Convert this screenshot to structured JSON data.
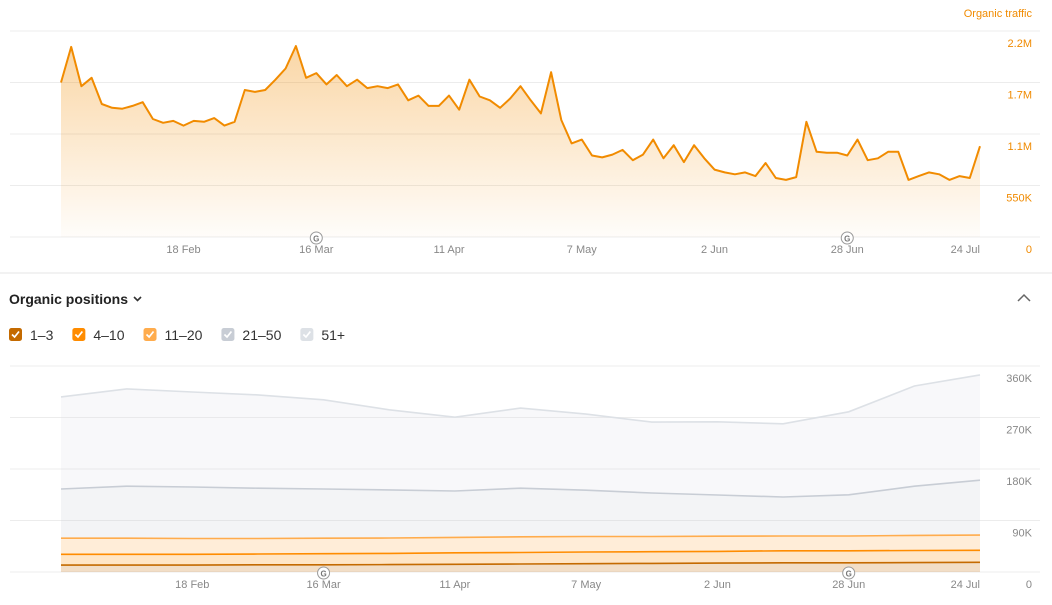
{
  "chart_data": [
    {
      "type": "area",
      "categories": [
        null,
        null,
        null,
        null,
        null,
        null,
        null,
        null,
        null,
        null,
        null,
        null,
        "18 Feb",
        null,
        null,
        null,
        null,
        null,
        null,
        null,
        null,
        null,
        null,
        null,
        null,
        "16 Mar",
        null,
        null,
        null,
        null,
        null,
        null,
        null,
        null,
        null,
        null,
        null,
        null,
        "11 Apr",
        null,
        null,
        null,
        null,
        null,
        null,
        null,
        null,
        null,
        null,
        null,
        null,
        "7 May",
        null,
        null,
        null,
        null,
        null,
        null,
        null,
        null,
        null,
        null,
        null,
        null,
        "2 Jun",
        null,
        null,
        null,
        null,
        null,
        null,
        null,
        null,
        null,
        null,
        null,
        null,
        "28 Jun",
        null,
        null,
        null,
        null,
        null,
        null,
        null,
        null,
        null,
        null,
        null,
        null,
        "24 Jul"
      ],
      "series": [
        {
          "name": "Organic traffic",
          "color": "#f18b00",
          "values": [
            1650000,
            2030000,
            1610000,
            1700000,
            1420000,
            1380000,
            1370000,
            1400000,
            1440000,
            1260000,
            1220000,
            1240000,
            1190000,
            1240000,
            1230000,
            1270000,
            1190000,
            1230000,
            1570000,
            1550000,
            1570000,
            1680000,
            1800000,
            2040000,
            1700000,
            1750000,
            1630000,
            1730000,
            1610000,
            1680000,
            1590000,
            1610000,
            1590000,
            1630000,
            1460000,
            1510000,
            1400000,
            1400000,
            1510000,
            1360000,
            1680000,
            1500000,
            1460000,
            1380000,
            1480000,
            1610000,
            1460000,
            1320000,
            1760000,
            1250000,
            1000000,
            1040000,
            870000,
            850000,
            880000,
            930000,
            820000,
            880000,
            1040000,
            840000,
            980000,
            800000,
            980000,
            840000,
            720000,
            690000,
            670000,
            690000,
            650000,
            790000,
            630000,
            610000,
            640000,
            1230000,
            910000,
            900000,
            900000,
            870000,
            1040000,
            820000,
            840000,
            910000,
            910000,
            610000,
            650000,
            690000,
            670000,
            610000,
            650000,
            630000,
            970000
          ]
        }
      ],
      "ylim": [
        0,
        2200000
      ],
      "yticks": [
        0,
        {
          "value": 550000,
          "label": "550K"
        },
        {
          "value": 1100000,
          "label": "1.1M"
        },
        {
          "value": 1650000,
          "label": "1.7M"
        },
        {
          "value": 2200000,
          "label": "2.2M"
        }
      ],
      "grid": true,
      "legend": "top-right",
      "annotations": [
        {
          "x": "16 Mar",
          "label": "G"
        },
        {
          "x": "28 Jun",
          "label": "G"
        }
      ]
    },
    {
      "type": "stacked_area",
      "title": "Organic positions",
      "categories": [
        null,
        null,
        "18 Feb",
        null,
        "16 Mar",
        null,
        "11 Apr",
        null,
        "7 May",
        null,
        "2 Jun",
        null,
        "28 Jun",
        null,
        "24 Jul"
      ],
      "series": [
        {
          "name": "1–3",
          "color": "#c46a00",
          "values": [
            12000,
            12000,
            12000,
            12500,
            12500,
            13000,
            13500,
            14000,
            14500,
            15000,
            15500,
            16000,
            16000,
            16500,
            17000
          ]
        },
        {
          "name": "4–10",
          "color": "#ff8c00",
          "values": [
            19000,
            19000,
            19000,
            19000,
            19500,
            19500,
            20000,
            20000,
            20500,
            20500,
            20500,
            21000,
            21000,
            21000,
            21000
          ]
        },
        {
          "name": "11–20",
          "color": "#ffac4d",
          "values": [
            28000,
            28000,
            27500,
            27000,
            27000,
            27000,
            27000,
            27500,
            27000,
            26500,
            26500,
            26000,
            26000,
            26500,
            26500
          ]
        },
        {
          "name": "21–50",
          "color": "#c8cdd5",
          "values": [
            86000,
            91000,
            90000,
            88000,
            86000,
            84000,
            81000,
            85000,
            81000,
            76000,
            72000,
            68000,
            72000,
            86000,
            96000
          ]
        },
        {
          "name": "51+",
          "color": "#dde1e6",
          "values": [
            161000,
            170000,
            166000,
            163000,
            156000,
            140000,
            129000,
            140000,
            133000,
            124000,
            128000,
            128000,
            145000,
            175000,
            184000
          ]
        }
      ],
      "ylim": [
        0,
        360000
      ],
      "yticks": [
        0,
        {
          "value": 90000,
          "label": "90K"
        },
        {
          "value": 180000,
          "label": "180K"
        },
        {
          "value": 270000,
          "label": "270K"
        },
        {
          "value": 360000,
          "label": "360K"
        }
      ],
      "grid": true,
      "legend": "top-left",
      "annotations": [
        {
          "x": "16 Mar",
          "label": "G"
        },
        {
          "x": "28 Jun",
          "label": "G"
        }
      ]
    }
  ]
}
